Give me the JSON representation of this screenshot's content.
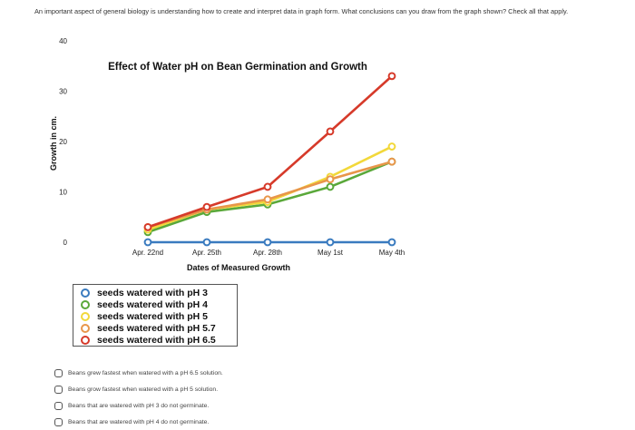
{
  "question": {
    "text": "An important aspect of general biology is understanding how to create and interpret data in graph form. What conclusions can you draw from the graph shown? Check all that apply."
  },
  "chart_data": {
    "type": "line",
    "title": "Effect of Water pH on Bean Germination and Growth",
    "xlabel": "Dates of Measured Growth",
    "ylabel": "Growth in cm.",
    "categories": [
      "Apr. 22nd",
      "Apr. 25th",
      "Apr. 28th",
      "May 1st",
      "May 4th"
    ],
    "ylim": [
      0,
      40
    ],
    "yticks": [
      "0",
      "10",
      "20",
      "30",
      "40"
    ],
    "grid": false,
    "series": [
      {
        "name": "seeds watered with pH 3",
        "color": "#3a7bbf",
        "values": [
          0,
          0,
          0,
          0,
          0
        ]
      },
      {
        "name": "seeds watered with pH 4",
        "color": "#5aa83a",
        "values": [
          2,
          6,
          7.5,
          11,
          16
        ]
      },
      {
        "name": "seeds watered with pH 5",
        "color": "#f2d83a",
        "values": [
          2.5,
          6.5,
          8,
          13,
          19
        ]
      },
      {
        "name": "seeds watered with pH 5.7",
        "color": "#e8964a",
        "values": [
          3,
          6.5,
          8.5,
          12.5,
          16
        ]
      },
      {
        "name": "seeds watered with pH 6.5",
        "color": "#d63a2a",
        "values": [
          3,
          7,
          11,
          22,
          33
        ]
      }
    ]
  },
  "options": [
    {
      "label": "Beans grew fastest when watered with a pH 6.5 solution."
    },
    {
      "label": "Beans grow fastest when watered with a pH 5 solution."
    },
    {
      "label": "Beans that are watered with pH 3 do not germinate."
    },
    {
      "label": "Beans that are watered with pH 4 do not germinate."
    }
  ]
}
